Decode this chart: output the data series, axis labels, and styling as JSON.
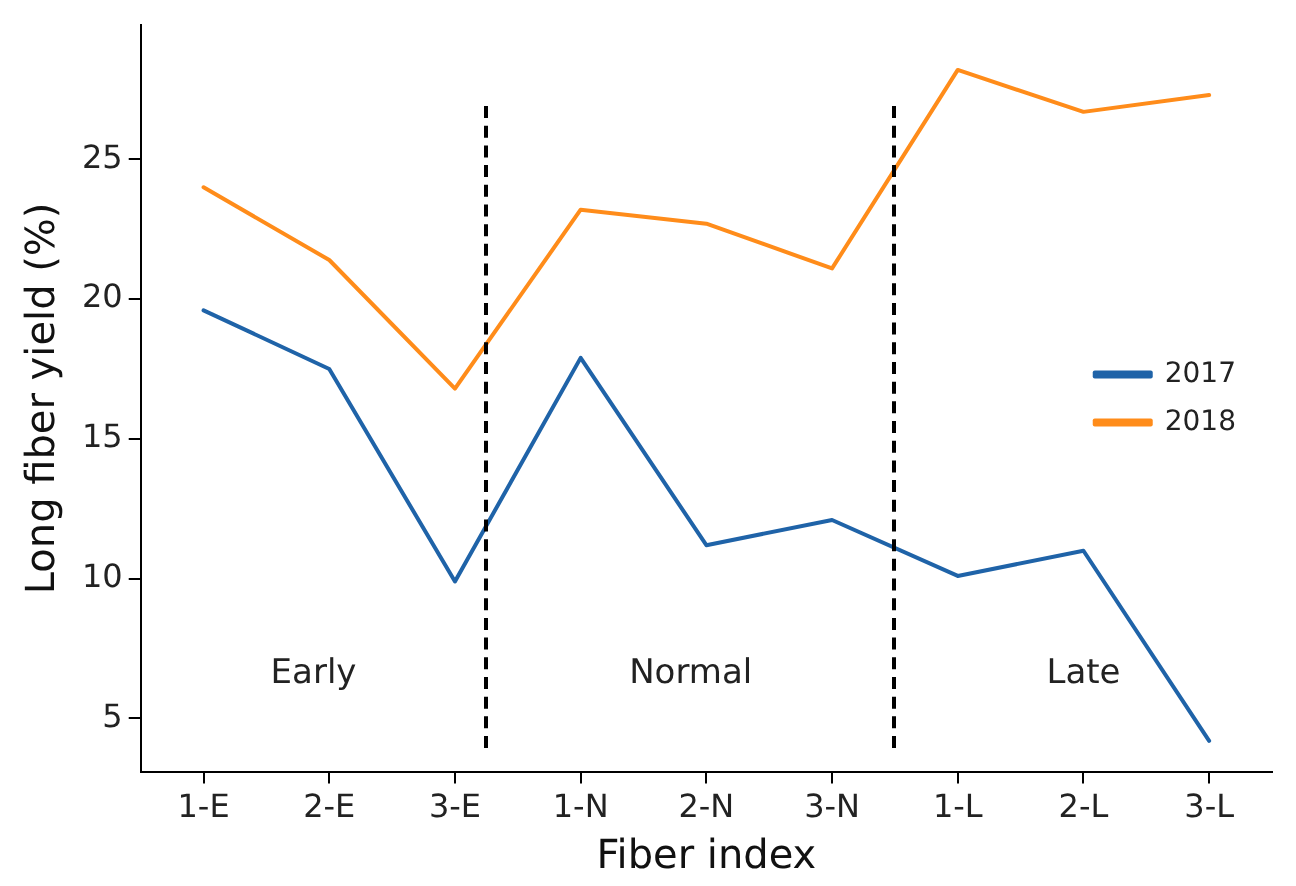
{
  "chart_data": {
    "type": "line",
    "xlabel": "Fiber index",
    "ylabel": "Long fiber yield (%)",
    "categories": [
      "1-E",
      "2-E",
      "3-E",
      "1-N",
      "2-N",
      "3-N",
      "1-L",
      "2-L",
      "3-L"
    ],
    "series": [
      {
        "name": "2017",
        "color": "#1f63a8",
        "values": [
          19.6,
          17.5,
          9.9,
          17.9,
          11.2,
          12.1,
          10.1,
          11.0,
          4.2
        ]
      },
      {
        "name": "2018",
        "color": "#ff8c1a",
        "values": [
          24.0,
          21.4,
          16.8,
          23.2,
          22.7,
          21.1,
          28.2,
          26.7,
          27.3
        ]
      }
    ],
    "ylim": [
      3.1,
      29.8
    ],
    "yticks": [
      5,
      10,
      15,
      20,
      25
    ],
    "annotations": [
      "Early",
      "Normal",
      "Late"
    ],
    "grid": false,
    "legend": "center right",
    "marker": "none",
    "line_style": "solid"
  }
}
